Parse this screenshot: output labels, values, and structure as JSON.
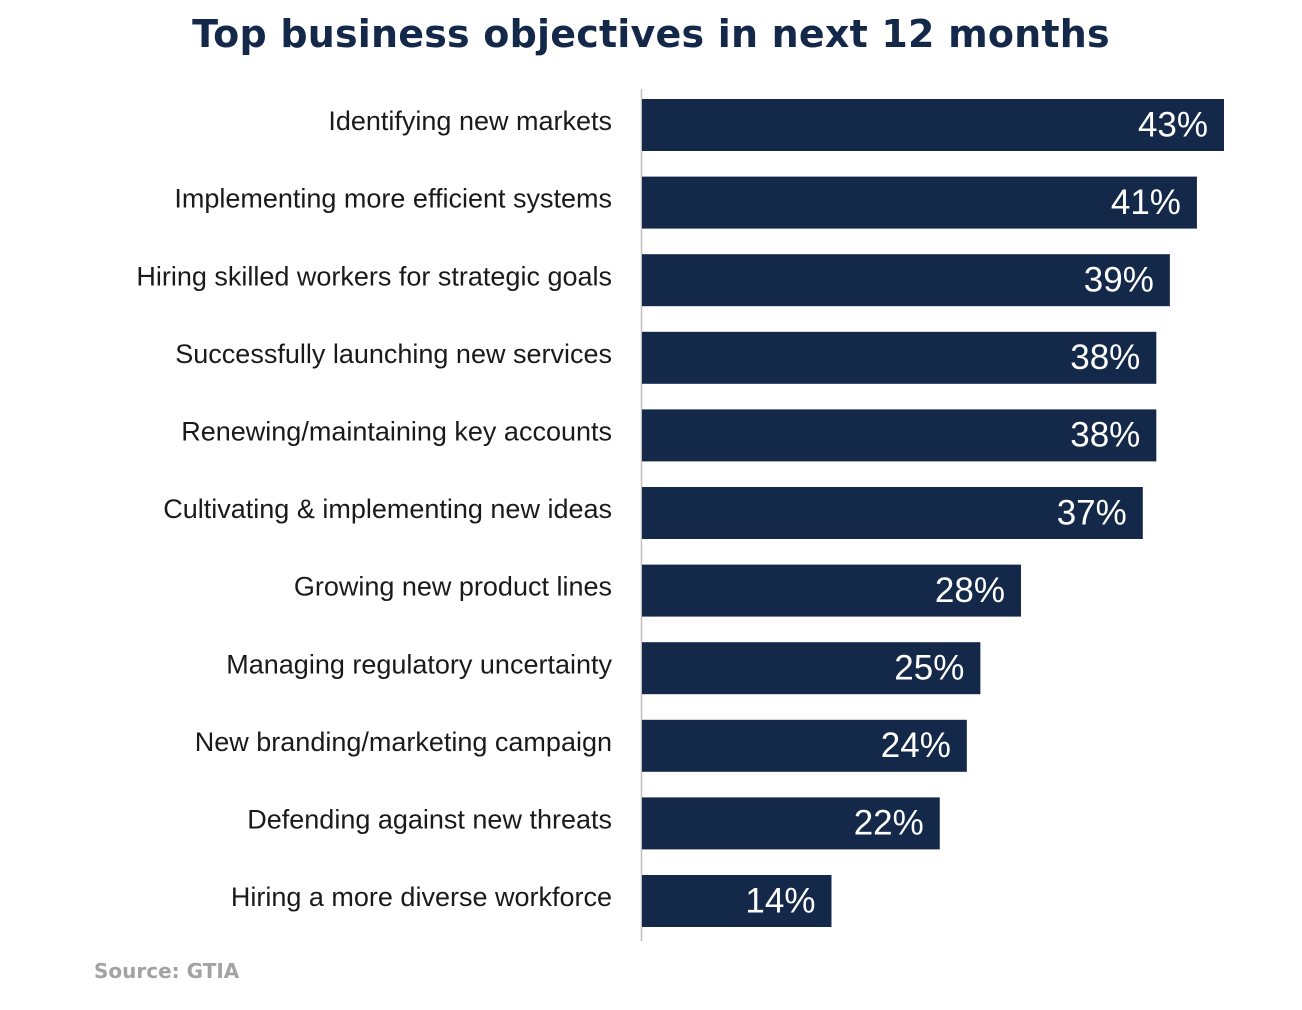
{
  "chart_data": {
    "type": "bar",
    "orientation": "horizontal",
    "title": "Top business objectives in next 12 months",
    "categories": [
      "Identifying new markets",
      "Implementing more efficient systems",
      "Hiring skilled workers for strategic goals",
      "Successfully launching new services",
      "Renewing/maintaining key accounts",
      "Cultivating & implementing new ideas",
      "Growing new product lines",
      "Managing regulatory uncertainty",
      "New branding/marketing campaign",
      "Defending against new threats",
      "Hiring a more diverse workforce"
    ],
    "values": [
      43,
      41,
      39,
      38,
      38,
      37,
      28,
      25,
      24,
      22,
      14
    ],
    "value_labels": [
      "43%",
      "41%",
      "39%",
      "38%",
      "38%",
      "37%",
      "28%",
      "25%",
      "24%",
      "22%",
      "14%"
    ],
    "unit": "%",
    "xlim": [
      0,
      45
    ],
    "grid": false,
    "legend": "none",
    "bar_color": "#14284a",
    "label_color": "#ffffff",
    "axis_color": "#bfbfbf"
  },
  "source": "Source: GTIA"
}
